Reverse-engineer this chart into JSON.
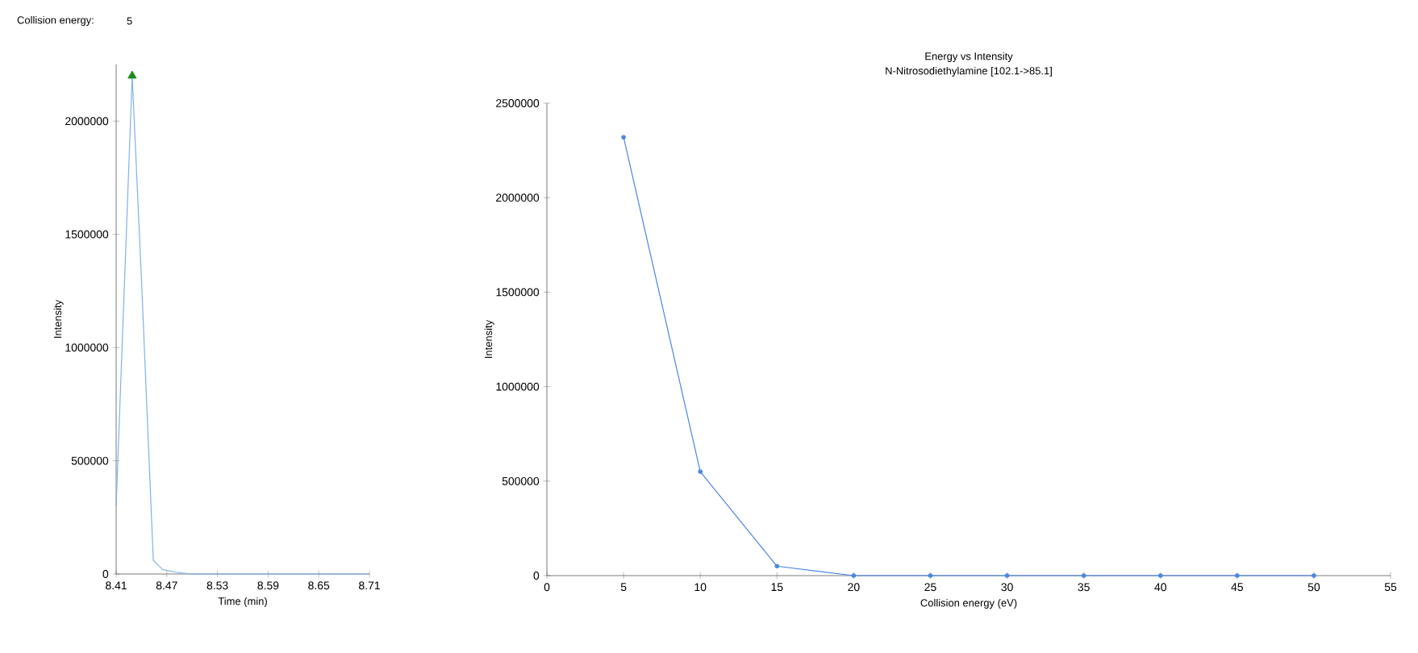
{
  "chart_data": [
    {
      "type": "line",
      "xlabel": "Time (min)",
      "ylabel": "Intensity",
      "annotations": [
        "Collision energy:",
        "5"
      ],
      "xlim": [
        8.41,
        8.71
      ],
      "xticks": [
        8.41,
        8.47,
        8.53,
        8.59,
        8.65,
        8.71
      ],
      "ylim": [
        0,
        2250000
      ],
      "yticks": [
        0,
        500000,
        1000000,
        1500000,
        2000000
      ],
      "series": [
        {
          "color": "#7fb2ea",
          "marker": "none",
          "x": [
            8.41,
            8.42,
            8.429,
            8.44,
            8.454,
            8.465,
            8.48,
            8.5,
            8.53,
            8.71
          ],
          "values": [
            300000,
            1300000,
            2200000,
            1300000,
            60000,
            20000,
            8000,
            0,
            0,
            0
          ]
        },
        {
          "type": "scatter",
          "color": "#1a8a1a",
          "marker": "triangle",
          "x": [
            8.429
          ],
          "values": [
            2200000
          ]
        }
      ]
    },
    {
      "type": "line",
      "title": "Energy vs Intensity",
      "subtitle": "N-Nitrosodiethylamine [102.1->85.1]",
      "xlabel": "Collision energy (eV)",
      "ylabel": "Intensity",
      "xlim": [
        0,
        55
      ],
      "xticks": [
        0,
        5,
        10,
        15,
        20,
        25,
        30,
        35,
        40,
        45,
        50,
        55
      ],
      "ylim": [
        0,
        2500000
      ],
      "yticks": [
        0,
        500000,
        1000000,
        1500000,
        2000000,
        2500000
      ],
      "series": [
        {
          "color": "#4a86e8",
          "marker": "circle",
          "x": [
            5,
            10,
            15,
            20,
            25,
            30,
            35,
            40,
            45,
            50
          ],
          "values": [
            2320000,
            550000,
            50000,
            0,
            0,
            0,
            0,
            0,
            0,
            0
          ]
        }
      ]
    }
  ]
}
